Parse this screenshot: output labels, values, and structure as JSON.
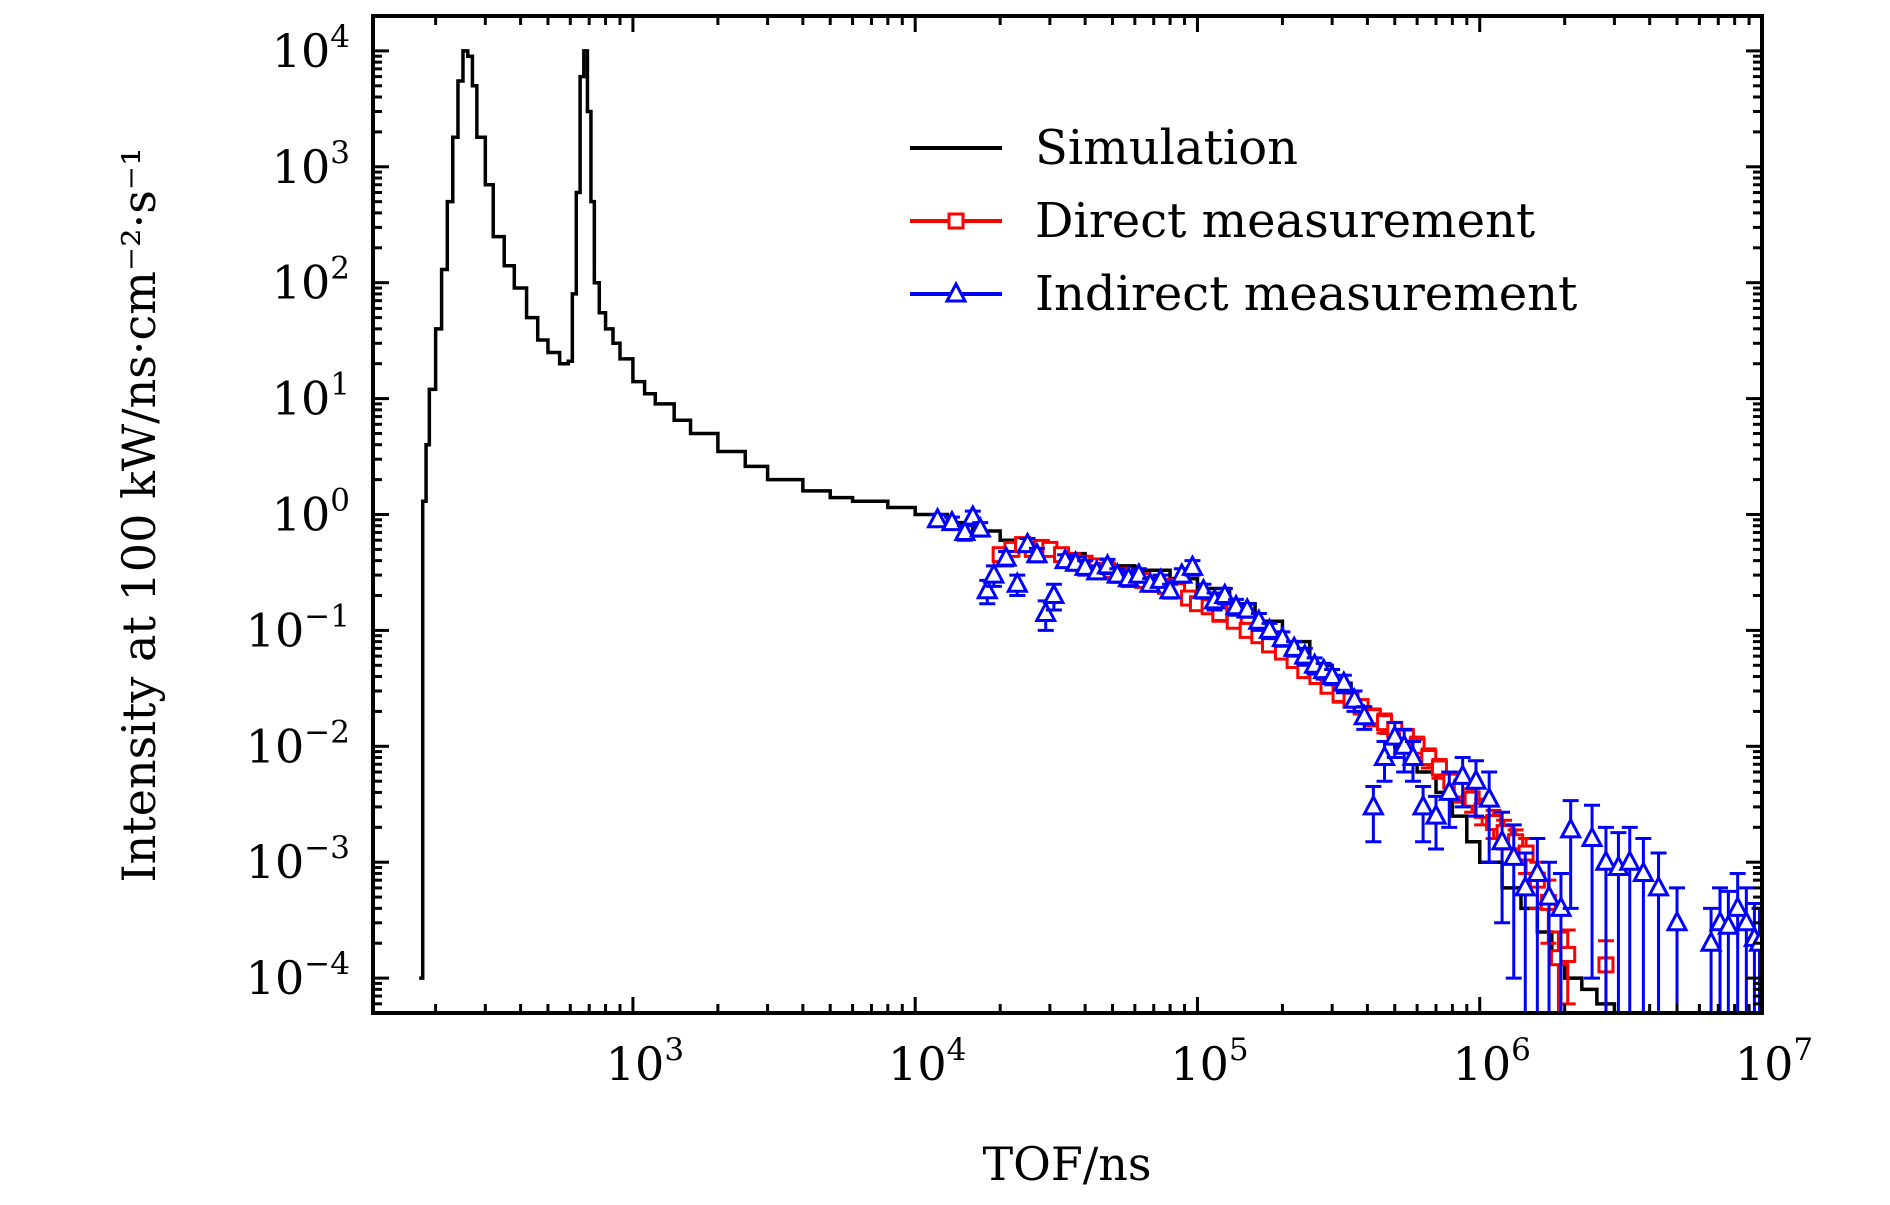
{
  "chart_data": {
    "type": "line",
    "xlabel": "TOF/ns",
    "ylabel": "Intensity at 100 kW/ns·cm⁻²·s⁻¹",
    "x_scale": "log",
    "y_scale": "log",
    "xlim": [
      120,
      10000000
    ],
    "ylim": [
      5e-05,
      20000
    ],
    "grid": false,
    "legend_position": "top-right",
    "x_ticks": [
      {
        "base": "10",
        "exp": "3",
        "value": 1000
      },
      {
        "base": "10",
        "exp": "4",
        "value": 10000
      },
      {
        "base": "10",
        "exp": "5",
        "value": 100000
      },
      {
        "base": "10",
        "exp": "6",
        "value": 1000000
      },
      {
        "base": "10",
        "exp": "7",
        "value": 10000000
      }
    ],
    "y_ticks": [
      {
        "base": "10",
        "exp": "4",
        "value": 10000
      },
      {
        "base": "10",
        "exp": "3",
        "value": 1000
      },
      {
        "base": "10",
        "exp": "2",
        "value": 100
      },
      {
        "base": "10",
        "exp": "1",
        "value": 10
      },
      {
        "base": "10",
        "exp": "0",
        "value": 1
      },
      {
        "base": "10",
        "exp": "−1",
        "value": 0.1
      },
      {
        "base": "10",
        "exp": "−2",
        "value": 0.01
      },
      {
        "base": "10",
        "exp": "−3",
        "value": 0.001
      },
      {
        "base": "10",
        "exp": "−4",
        "value": 0.0001
      }
    ],
    "series": [
      {
        "name": "Simulation",
        "color": "#000000",
        "marker": "none",
        "style": "step",
        "x": [
          175,
          180,
          185,
          190,
          200,
          210,
          220,
          230,
          240,
          250,
          260,
          270,
          280,
          300,
          320,
          350,
          380,
          420,
          460,
          500,
          550,
          590,
          610,
          630,
          650,
          670,
          690,
          710,
          730,
          760,
          800,
          850,
          900,
          1000,
          1100,
          1200,
          1400,
          1600,
          2000,
          2500,
          3000,
          4000,
          5000,
          6000,
          8000,
          10000,
          13000,
          16000,
          20000,
          25000,
          30000,
          40000,
          50000,
          60000,
          80000,
          100000,
          130000,
          160000,
          200000,
          250000,
          300000,
          350000,
          400000,
          450000,
          500000,
          600000,
          700000,
          800000,
          900000,
          1000000,
          1200000,
          1400000,
          1600000,
          1800000,
          2000000,
          2300000,
          2600000,
          3000000
        ],
        "values": [
          0.0001,
          1.3,
          4,
          12,
          40,
          130,
          500,
          1800,
          5500,
          10000,
          9000,
          5000,
          1800,
          700,
          250,
          140,
          90,
          50,
          32,
          25,
          20,
          21,
          80,
          600,
          6000,
          10000,
          3000,
          500,
          100,
          55,
          40,
          30,
          22,
          14,
          11,
          9,
          6.5,
          5,
          3.5,
          2.6,
          2.0,
          1.6,
          1.4,
          1.3,
          1.15,
          1.0,
          0.85,
          0.72,
          0.6,
          0.52,
          0.46,
          0.4,
          0.36,
          0.33,
          0.28,
          0.23,
          0.17,
          0.12,
          0.08,
          0.05,
          0.035,
          0.025,
          0.018,
          0.013,
          0.01,
          0.006,
          0.004,
          0.0025,
          0.0015,
          0.001,
          0.0006,
          0.0004,
          0.00025,
          0.00015,
          0.0001,
          8e-05,
          6e-05,
          5e-05
        ]
      },
      {
        "name": "Direct measurement",
        "color": "#ff0000",
        "marker": "square",
        "x": [
          20000,
          22000,
          24000,
          26000,
          28000,
          30000,
          33000,
          36000,
          40000,
          44000,
          48000,
          53000,
          58000,
          64000,
          70000,
          77000,
          85000,
          93000,
          100000,
          110000,
          120000,
          135000,
          150000,
          165000,
          180000,
          200000,
          220000,
          240000,
          265000,
          290000,
          320000,
          350000,
          380000,
          420000,
          460000,
          500000,
          550000,
          600000,
          660000,
          720000,
          790000,
          860000,
          940000,
          1020000,
          1120000,
          1220000,
          1340000,
          1460000,
          1600000,
          1750000,
          1900000,
          2050000,
          2800000
        ],
        "values": [
          0.45,
          0.5,
          0.55,
          0.5,
          0.52,
          0.5,
          0.45,
          0.4,
          0.38,
          0.36,
          0.33,
          0.3,
          0.28,
          0.27,
          0.25,
          0.24,
          0.22,
          0.19,
          0.17,
          0.16,
          0.14,
          0.12,
          0.1,
          0.09,
          0.075,
          0.065,
          0.055,
          0.045,
          0.04,
          0.033,
          0.028,
          0.025,
          0.022,
          0.018,
          0.016,
          0.014,
          0.012,
          0.01,
          0.008,
          0.0065,
          0.005,
          0.0042,
          0.0035,
          0.0028,
          0.0022,
          0.0018,
          0.0015,
          0.0012,
          0.0007,
          0.00045,
          0.00015,
          0.00016,
          0.00013
        ],
        "errors": [
          0.05,
          0.05,
          0.06,
          0.05,
          0.05,
          0.05,
          0.05,
          0.04,
          0.04,
          0.04,
          0.03,
          0.03,
          0.03,
          0.03,
          0.03,
          0.03,
          0.02,
          0.02,
          0.02,
          0.02,
          0.02,
          0.015,
          0.012,
          0.01,
          0.008,
          0.007,
          0.006,
          0.005,
          0.005,
          0.004,
          0.004,
          0.003,
          0.003,
          0.003,
          0.003,
          0.002,
          0.002,
          0.002,
          0.0015,
          0.0012,
          0.001,
          0.0009,
          0.0008,
          0.0007,
          0.0006,
          0.0005,
          0.0004,
          0.0004,
          0.0003,
          0.00025,
          0.0001,
          0.0001,
          8e-05
        ]
      },
      {
        "name": "Indirect measurement",
        "color": "#0000ff",
        "marker": "triangle",
        "x": [
          12000,
          13500,
          15000,
          16000,
          17000,
          18000,
          19000,
          21000,
          23000,
          25000,
          27000,
          29000,
          31000,
          34000,
          37000,
          40000,
          44000,
          48000,
          52000,
          57000,
          62000,
          68000,
          74000,
          80000,
          88000,
          96000,
          105000,
          115000,
          125000,
          137000,
          150000,
          165000,
          180000,
          200000,
          220000,
          240000,
          260000,
          280000,
          300000,
          330000,
          360000,
          390000,
          420000,
          460000,
          500000,
          540000,
          580000,
          630000,
          700000,
          780000,
          870000,
          970000,
          1080000,
          1200000,
          1320000,
          1450000,
          1600000,
          1760000,
          1940000,
          2100000,
          2500000,
          2800000,
          3100000,
          3400000,
          3800000,
          4300000,
          5000000,
          6600000,
          7100000,
          7600000,
          8200000,
          8800000,
          9400000,
          9800000
        ],
        "values": [
          0.9,
          0.85,
          0.7,
          0.95,
          0.75,
          0.22,
          0.3,
          0.42,
          0.25,
          0.55,
          0.45,
          0.14,
          0.2,
          0.4,
          0.38,
          0.35,
          0.32,
          0.36,
          0.3,
          0.28,
          0.3,
          0.25,
          0.27,
          0.22,
          0.3,
          0.35,
          0.22,
          0.18,
          0.2,
          0.16,
          0.15,
          0.12,
          0.1,
          0.085,
          0.07,
          0.06,
          0.05,
          0.045,
          0.04,
          0.035,
          0.025,
          0.018,
          0.003,
          0.008,
          0.012,
          0.01,
          0.008,
          0.003,
          0.0025,
          0.004,
          0.0055,
          0.005,
          0.0035,
          0.0015,
          0.0011,
          0.0006,
          0.0008,
          0.0005,
          0.0004,
          0.0019,
          0.0016,
          0.001,
          0.0009,
          0.001,
          0.0008,
          0.0006,
          0.0003,
          0.0002,
          0.0003,
          0.00028,
          0.0004,
          0.0003,
          0.00022,
          0.0002
        ],
        "errors": [
          0.1,
          0.1,
          0.1,
          0.12,
          0.1,
          0.05,
          0.06,
          0.06,
          0.05,
          0.07,
          0.06,
          0.04,
          0.05,
          0.05,
          0.05,
          0.05,
          0.04,
          0.05,
          0.04,
          0.04,
          0.04,
          0.03,
          0.03,
          0.03,
          0.04,
          0.05,
          0.03,
          0.03,
          0.03,
          0.025,
          0.02,
          0.02,
          0.015,
          0.012,
          0.01,
          0.01,
          0.008,
          0.007,
          0.006,
          0.006,
          0.005,
          0.004,
          0.0015,
          0.003,
          0.004,
          0.004,
          0.003,
          0.0015,
          0.0012,
          0.002,
          0.0025,
          0.0025,
          0.0025,
          0.0012,
          0.001,
          0.0006,
          0.0008,
          0.0005,
          0.0004,
          0.0015,
          0.0015,
          0.001,
          0.0009,
          0.001,
          0.0008,
          0.0006,
          0.0003,
          0.0002,
          0.0003,
          0.00028,
          0.0004,
          0.0003,
          0.00022,
          0.0002
        ]
      }
    ]
  }
}
